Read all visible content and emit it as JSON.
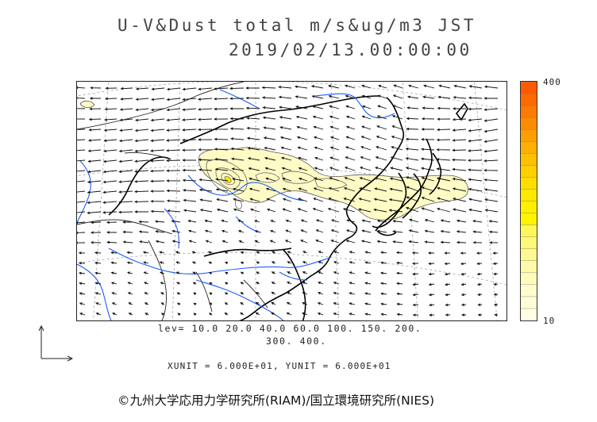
{
  "title": {
    "line1": "U-V&Dust total m/s&ug/m3 JST",
    "line2": "2019/02/13.00:00:00"
  },
  "colorbar": {
    "max_label": "400",
    "min_label": "10",
    "colors": [
      "#ff5a00",
      "#ff6a00",
      "#ff7a00",
      "#ff8c00",
      "#ff9e00",
      "#ffb000",
      "#ffc000",
      "#ffd000",
      "#ffde00",
      "#ffe800",
      "#fff000",
      "#fff400",
      "#fff65a",
      "#fff778",
      "#fff890",
      "#fffaa8",
      "#fffbbc",
      "#fffccc",
      "#fffdd8",
      "#fffee4"
    ]
  },
  "levels": {
    "line1": "lev= 10.0 20.0 40.0 60.0 100. 150. 200.",
    "line2": "300. 400."
  },
  "units": "XUNIT = 6.000E+01, YUNIT = 6.000E+01",
  "credit": "©九州大学応用力学研究所(RIAM)/国立環境研究所(NIES)",
  "map": {
    "fill_color": "#fffbc4",
    "contour_color": "#555555",
    "coast_color": "#000000",
    "river_color": "#1a5cff",
    "border_color": "#111111"
  }
}
